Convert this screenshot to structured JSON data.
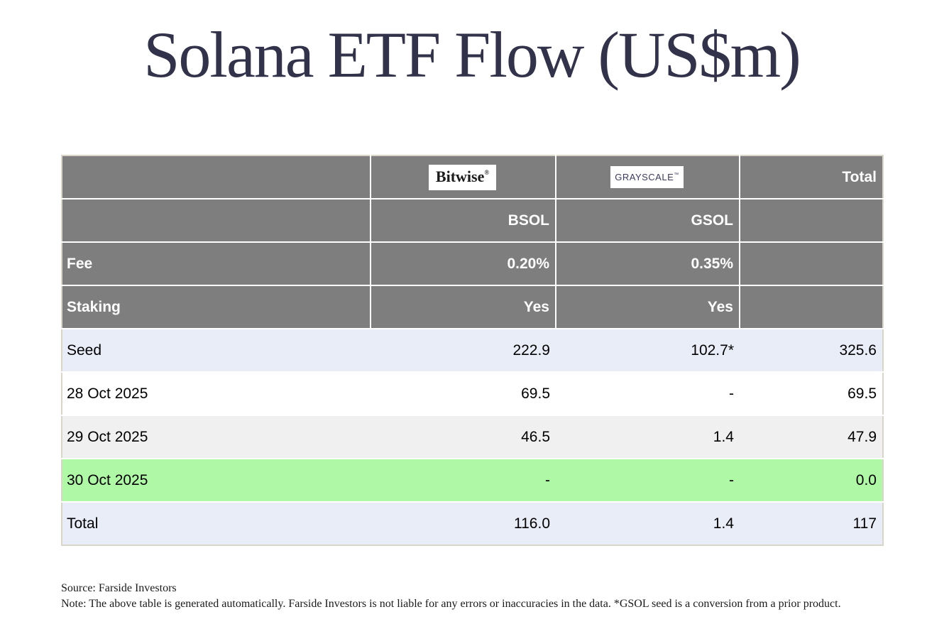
{
  "title": "Solana ETF Flow (US$m)",
  "colors": {
    "title_text": "#32324a",
    "header_bg": "#7e7e7e",
    "header_text": "#ffffff",
    "seed_total_row_bg": "#e9edf8",
    "alt_row_bg": "#f0f0f0",
    "highlight_row_bg": "#aff8a5",
    "table_frame": "#d9d5c9",
    "grayscale_logo_text": "#3b3b5e"
  },
  "chart_data": {
    "type": "table",
    "title": "Solana ETF Flow (US$m)",
    "columns": [
      "",
      "BSOL (Bitwise)",
      "GSOL (Grayscale)",
      "Total"
    ],
    "header": {
      "bitwise_logo": "Bitwise",
      "bitwise_mark": "®",
      "grayscale_logo": "GRAYSCALE",
      "grayscale_mark": "™",
      "total_label": "Total",
      "bsol_ticker": "BSOL",
      "gsol_ticker": "GSOL",
      "fee_label": "Fee",
      "bsol_fee": "0.20%",
      "gsol_fee": "0.35%",
      "staking_label": "Staking",
      "bsol_staking": "Yes",
      "gsol_staking": "Yes"
    },
    "rows": [
      {
        "label": "Seed",
        "bsol": "222.9",
        "gsol": "102.7*",
        "total": "325.6",
        "style": "seed"
      },
      {
        "label": "28 Oct 2025",
        "bsol": "69.5",
        "gsol": "-",
        "total": "69.5",
        "style": "plain"
      },
      {
        "label": "29 Oct 2025",
        "bsol": "46.5",
        "gsol": "1.4",
        "total": "47.9",
        "style": "alt"
      },
      {
        "label": "30 Oct 2025",
        "bsol": "-",
        "gsol": "-",
        "total": "0.0",
        "style": "green"
      },
      {
        "label": "Total",
        "bsol": "116.0",
        "gsol": "1.4",
        "total": "117",
        "style": "total"
      }
    ]
  },
  "footer": {
    "source": "Source: Farside Investors",
    "note": "Note: The above table is generated automatically. Farside Investors is not liable for any errors or inaccuracies in the data. *GSOL seed is a conversion from a prior product."
  }
}
